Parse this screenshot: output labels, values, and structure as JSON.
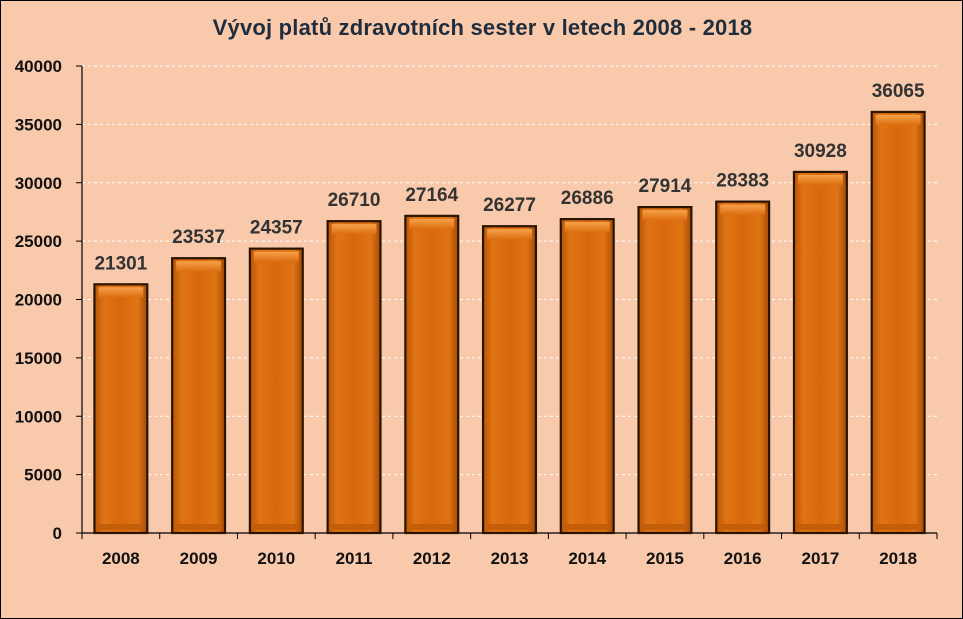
{
  "chart_data": {
    "type": "bar",
    "title": "Vývoj platů zdravotních sester v letech 2008 - 2018",
    "xlabel": "",
    "ylabel": "",
    "categories": [
      "2008",
      "2009",
      "2010",
      "2011",
      "2012",
      "2013",
      "2014",
      "2015",
      "2016",
      "2017",
      "2018"
    ],
    "values": [
      21301,
      23537,
      24357,
      26710,
      27164,
      26277,
      26886,
      27914,
      28383,
      30928,
      36065
    ],
    "ylim": [
      0,
      40000
    ],
    "yticks": [
      0,
      5000,
      10000,
      15000,
      20000,
      25000,
      30000,
      35000,
      40000
    ],
    "grid": true,
    "legend": "none",
    "colors": {
      "background": "#f9c9ac",
      "bar": "#d9680c",
      "bar_top": "#f39a3c",
      "bar_edge": "#2a1400",
      "gridline": "#ffffff",
      "axis": "#000000"
    }
  }
}
